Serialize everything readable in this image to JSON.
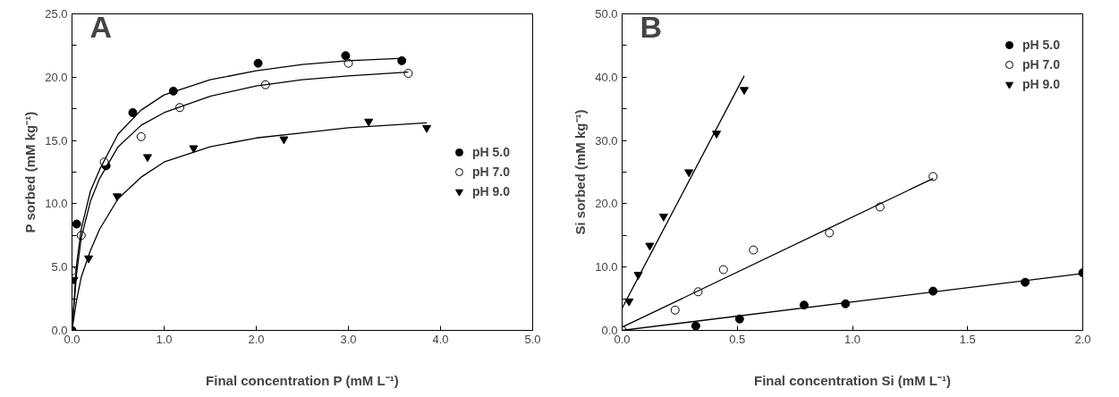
{
  "chart_data": [
    {
      "type": "scatter",
      "xlabel": "Final concentration P (mM L⁻¹)",
      "ylabel": "P sorbed (mM kg⁻¹)",
      "annotations": [
        "A"
      ],
      "xlim": [
        0,
        5
      ],
      "ylim": [
        0,
        25
      ],
      "xticks": [
        {
          "value": 0,
          "label": "0.0"
        },
        {
          "value": 1,
          "label": "1.0"
        },
        {
          "value": 2,
          "label": "2.0"
        },
        {
          "value": 3,
          "label": "3.0"
        },
        {
          "value": 4,
          "label": "4.0"
        },
        {
          "value": 5,
          "label": "5.0"
        }
      ],
      "yticks": [
        {
          "value": 0,
          "label": "0.0"
        },
        {
          "value": 2.5,
          "label": null
        },
        {
          "value": 5,
          "label": "5.0"
        },
        {
          "value": 7.5,
          "label": null
        },
        {
          "value": 10,
          "label": "10.0"
        },
        {
          "value": 12.5,
          "label": null
        },
        {
          "value": 15,
          "label": "15.0"
        },
        {
          "value": 17.5,
          "label": null
        },
        {
          "value": 20,
          "label": "20.0"
        },
        {
          "value": 22.5,
          "label": null
        },
        {
          "value": 25,
          "label": "25.0"
        }
      ],
      "grid": false,
      "legend": "right",
      "series": [
        {
          "name": "pH 5.0",
          "color": "#000000",
          "marker": "circle",
          "x": [
            0,
            0.05,
            0.37,
            0.66,
            1.1,
            2.02,
            2.97,
            3.58
          ],
          "values": [
            0,
            8.4,
            13.0,
            17.2,
            18.9,
            21.1,
            21.7,
            21.3
          ]
        },
        {
          "name": "pH 7.0",
          "color": "#ffffff",
          "marker": "circle",
          "x": [
            0,
            0.1,
            0.35,
            0.75,
            1.17,
            2.1,
            3.0,
            3.65
          ],
          "values": [
            4.7,
            7.5,
            13.3,
            15.3,
            17.6,
            19.4,
            21.1,
            20.3
          ]
        },
        {
          "name": "pH 9.0",
          "color": "#000000",
          "marker": "triangle",
          "x": [
            0.02,
            0.18,
            0.49,
            0.82,
            1.32,
            2.3,
            3.22,
            3.85
          ],
          "values": [
            4.0,
            5.7,
            10.6,
            13.7,
            14.4,
            15.1,
            16.5,
            16.0
          ]
        },
        {
          "type": "line",
          "color": "#000000",
          "x": [
            0,
            0.05,
            0.1,
            0.2,
            0.3,
            0.5,
            0.75,
            1.0,
            1.5,
            2.0,
            2.5,
            3.0,
            3.6
          ],
          "values": [
            0,
            5.2,
            8.0,
            11.0,
            12.7,
            15.5,
            17.4,
            18.6,
            19.8,
            20.5,
            21.0,
            21.3,
            21.5
          ]
        },
        {
          "type": "line",
          "color": "#000000",
          "x": [
            0,
            0.05,
            0.1,
            0.2,
            0.3,
            0.5,
            0.75,
            1.0,
            1.5,
            2.0,
            2.5,
            3.0,
            3.65
          ],
          "values": [
            0,
            4.5,
            7.3,
            10.2,
            12.0,
            14.5,
            16.2,
            17.2,
            18.5,
            19.3,
            19.8,
            20.1,
            20.4
          ]
        },
        {
          "type": "line",
          "color": "#000000",
          "x": [
            0,
            0.05,
            0.1,
            0.2,
            0.3,
            0.5,
            0.75,
            1.0,
            1.5,
            2.0,
            2.5,
            3.0,
            3.85
          ],
          "values": [
            0,
            2.4,
            4.2,
            6.3,
            8.0,
            10.4,
            12.1,
            13.3,
            14.5,
            15.2,
            15.6,
            16.0,
            16.4
          ]
        }
      ]
    },
    {
      "type": "scatter",
      "xlabel": "Final concentration Si (mM L⁻¹)",
      "ylabel": "Si sorbed (mM kg⁻¹)",
      "annotations": [
        "B"
      ],
      "xlim": [
        0,
        2
      ],
      "ylim": [
        0,
        50
      ],
      "xticks": [
        {
          "value": 0,
          "label": "0.0"
        },
        {
          "value": 0.5,
          "label": "0.5"
        },
        {
          "value": 1,
          "label": "1.0"
        },
        {
          "value": 1.5,
          "label": "1.5"
        },
        {
          "value": 2,
          "label": "2.0"
        }
      ],
      "yticks": [
        {
          "value": 0,
          "label": "0.0"
        },
        {
          "value": 5,
          "label": null
        },
        {
          "value": 10,
          "label": "10.0"
        },
        {
          "value": 15,
          "label": null
        },
        {
          "value": 20,
          "label": "20.0"
        },
        {
          "value": 25,
          "label": null
        },
        {
          "value": 30,
          "label": "30.0"
        },
        {
          "value": 35,
          "label": null
        },
        {
          "value": 40,
          "label": "40.0"
        },
        {
          "value": 45,
          "label": null
        },
        {
          "value": 50,
          "label": "50.0"
        }
      ],
      "grid": false,
      "legend": "top right",
      "series": [
        {
          "name": "pH 5.0",
          "color": "#000000",
          "marker": "circle",
          "x": [
            0,
            0.32,
            0.51,
            0.79,
            0.97,
            1.35,
            1.75,
            2.0
          ],
          "values": [
            0,
            0.7,
            1.8,
            4.0,
            4.2,
            6.2,
            7.6,
            9.1
          ]
        },
        {
          "name": "pH 7.0",
          "color": "#ffffff",
          "marker": "circle",
          "x": [
            0,
            0.23,
            0.33,
            0.44,
            0.57,
            0.9,
            1.12,
            1.35
          ],
          "values": [
            0,
            3.2,
            6.1,
            9.6,
            12.7,
            15.4,
            19.5,
            24.3
          ]
        },
        {
          "name": "pH 9.0",
          "color": "#000000",
          "marker": "triangle",
          "x": [
            0.03,
            0.07,
            0.12,
            0.18,
            0.29,
            0.41,
            0.53
          ],
          "values": [
            4.6,
            8.8,
            13.4,
            18.0,
            25.0,
            31.1,
            38.0
          ]
        },
        {
          "type": "line",
          "color": "#000000",
          "x": [
            0,
            2.0
          ],
          "values": [
            0,
            9.0
          ]
        },
        {
          "type": "line",
          "color": "#000000",
          "x": [
            0,
            1.35
          ],
          "values": [
            0.5,
            24.0
          ]
        },
        {
          "type": "line",
          "color": "#000000",
          "x": [
            0,
            0.53
          ],
          "values": [
            3.5,
            40.2
          ]
        }
      ]
    }
  ]
}
